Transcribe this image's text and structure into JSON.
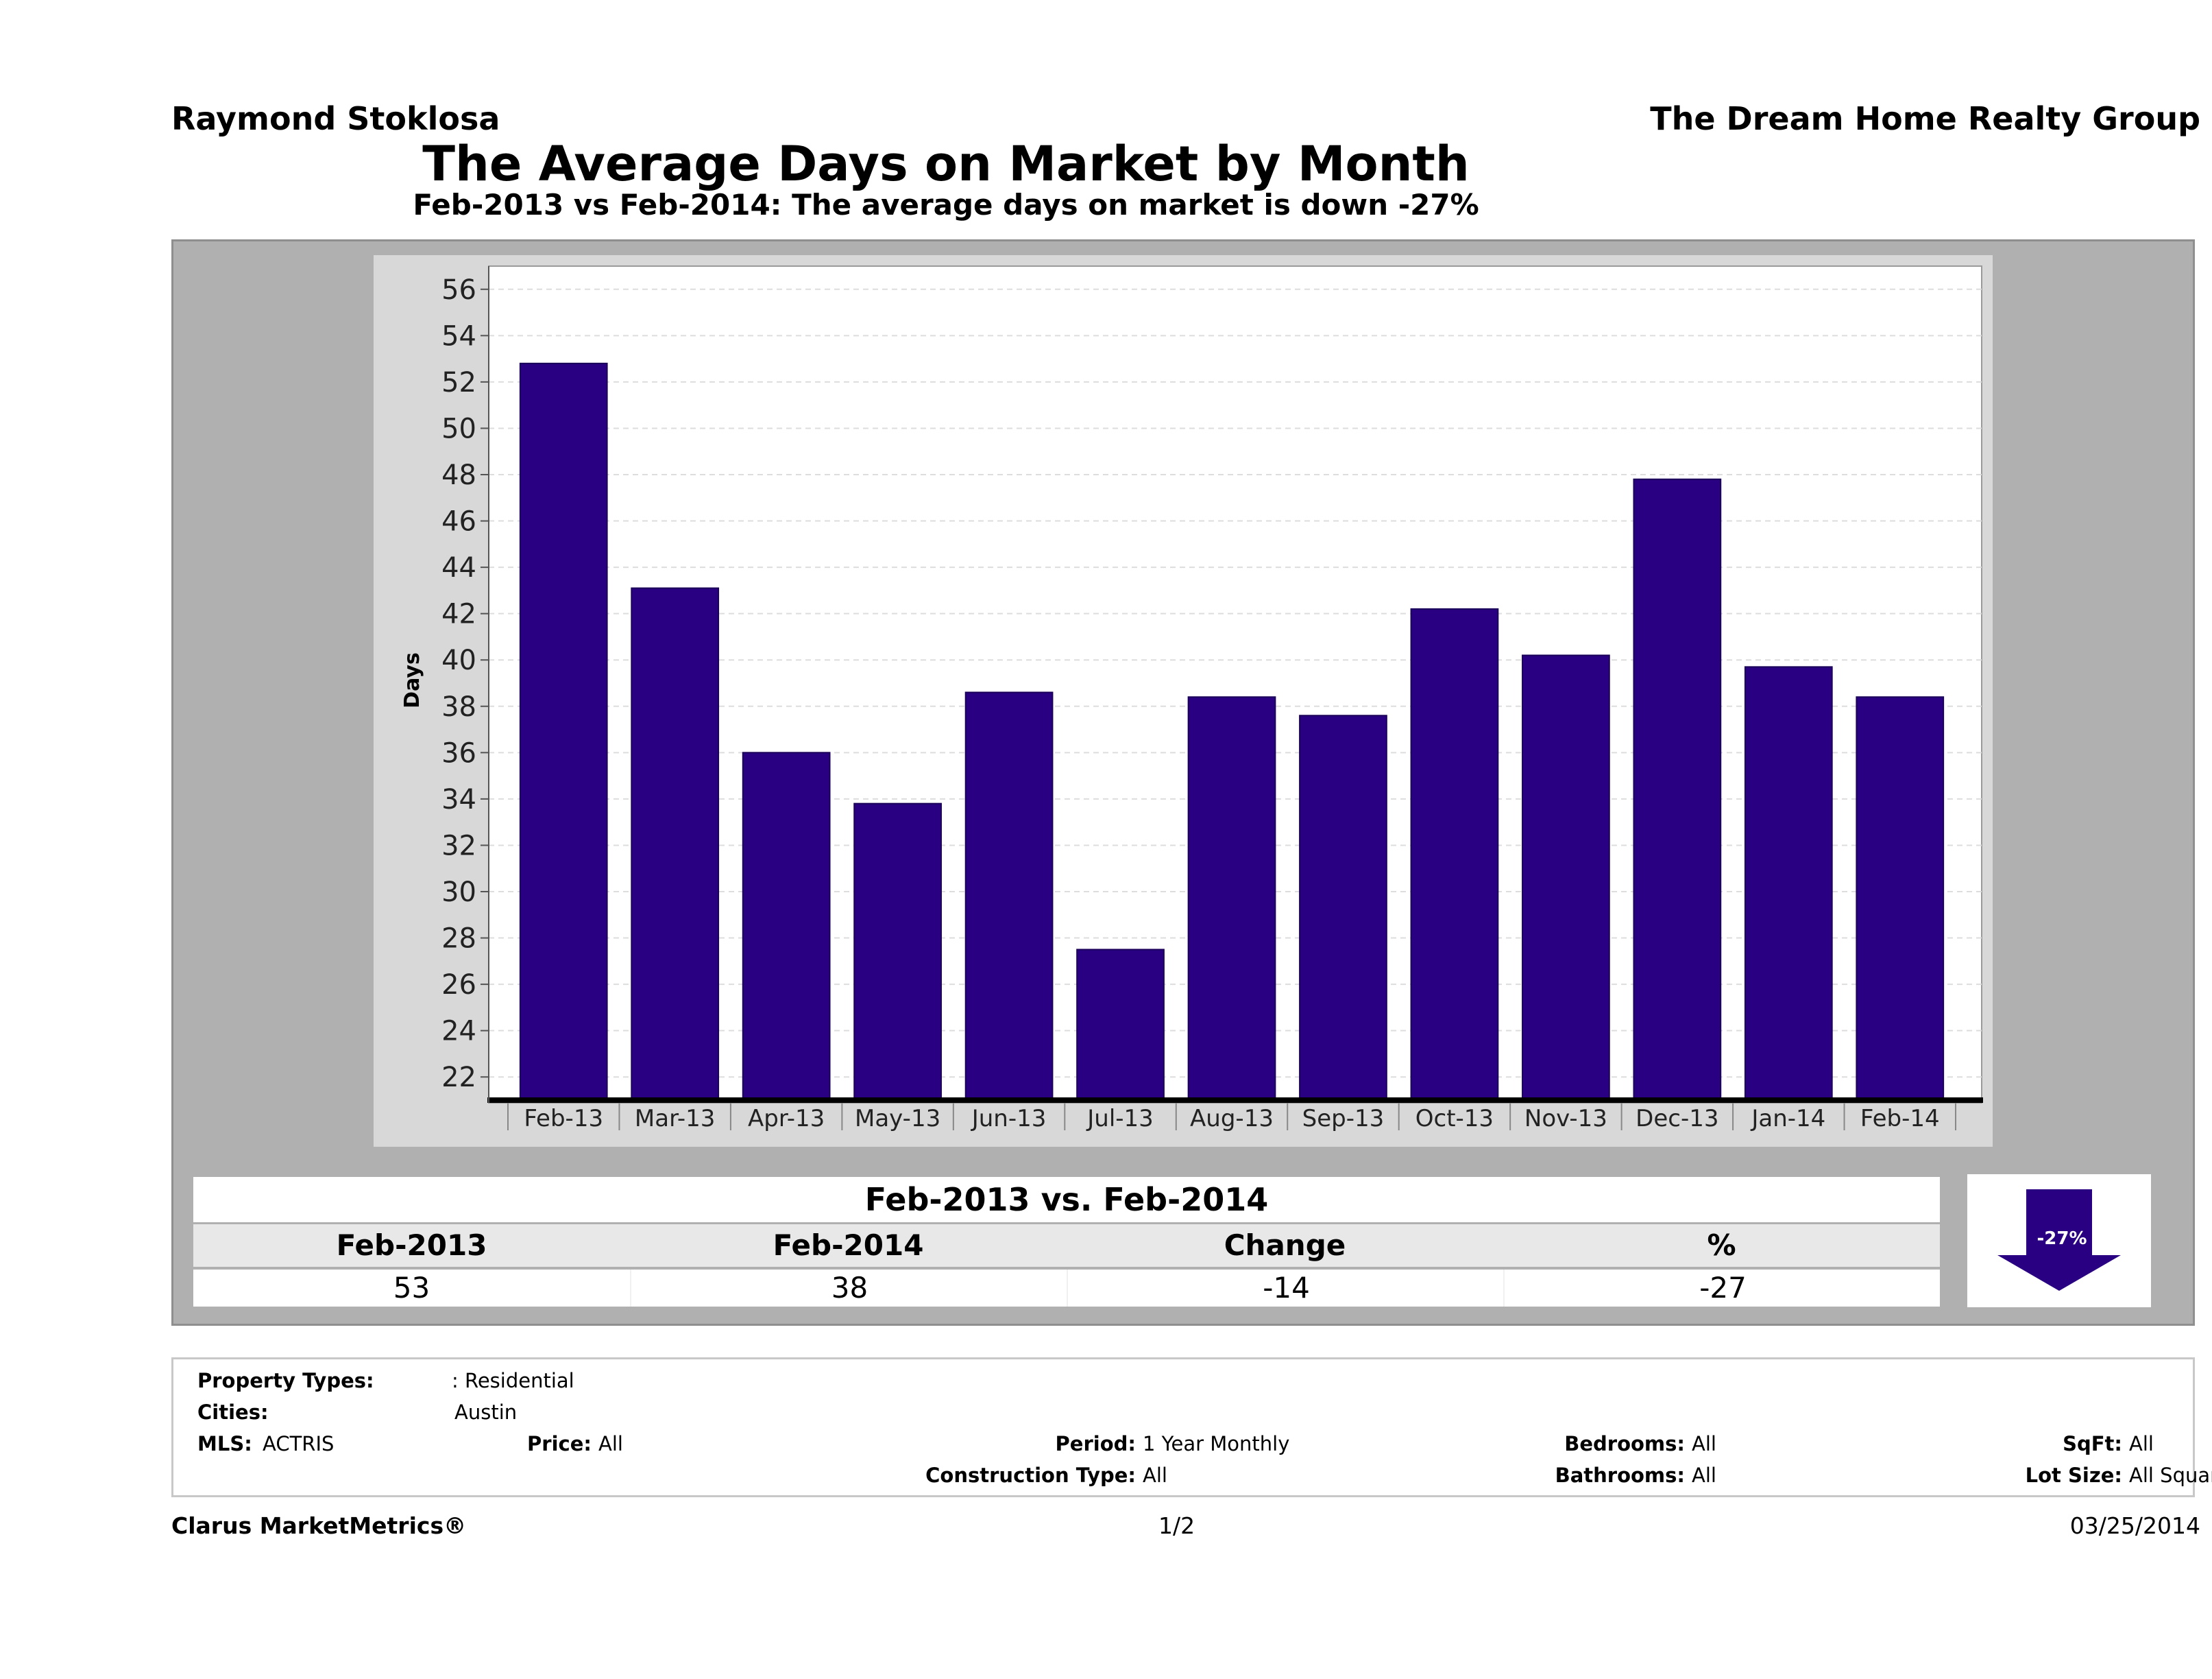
{
  "header": {
    "agent_name": "Raymond Stoklosa",
    "company": "The Dream Home Realty Group",
    "title": "The Average Days on Market by Month",
    "subtitle": "Feb-2013 vs Feb-2014: The average days on market is down -27%"
  },
  "colors": {
    "bar": "#2a0082",
    "panel": "#b0b0b0",
    "plot_frame": "#d8d8d8",
    "plot_bg": "#ffffff",
    "grid": "#dddddd"
  },
  "chart_data": {
    "type": "bar",
    "ylabel": "Days",
    "xlabel": "",
    "categories": [
      "Feb-13",
      "Mar-13",
      "Apr-13",
      "May-13",
      "Jun-13",
      "Jul-13",
      "Aug-13",
      "Sep-13",
      "Oct-13",
      "Nov-13",
      "Dec-13",
      "Jan-14",
      "Feb-14"
    ],
    "values": [
      52.8,
      43.1,
      36.0,
      33.8,
      38.6,
      27.5,
      38.4,
      37.6,
      42.2,
      40.2,
      47.8,
      39.7,
      38.4
    ],
    "ylim": [
      21,
      57
    ],
    "yticks": [
      22,
      24,
      26,
      28,
      30,
      32,
      34,
      36,
      38,
      40,
      42,
      44,
      46,
      48,
      50,
      52,
      54,
      56
    ],
    "grid": true,
    "grid_style": "dashed"
  },
  "comparison": {
    "title": "Feb-2013 vs. Feb-2014",
    "columns": [
      "Feb-2013",
      "Feb-2014",
      "Change",
      "%"
    ],
    "values": [
      "53",
      "38",
      "-14",
      "-27"
    ],
    "badge": "-27%",
    "direction": "down",
    "arrow_icon": "down-arrow-icon"
  },
  "criteria": {
    "property_types_label": "Property Types:",
    "property_types_value": ": Residential",
    "cities_label": "Cities:",
    "cities_value": "Austin",
    "mls_label": "MLS:",
    "mls_value": "ACTRIS",
    "price_label": "Price:",
    "price_value": "All",
    "period_label": "Period:",
    "period_value": "1 Year Monthly",
    "construction_label": "Construction Type:",
    "construction_value": "All",
    "bedrooms_label": "Bedrooms:",
    "bedrooms_value": "All",
    "bathrooms_label": "Bathrooms:",
    "bathrooms_value": "All",
    "sqft_label": "SqFt:",
    "sqft_value": "All",
    "lotsize_label": "Lot Size:",
    "lotsize_value": "All Square Footage"
  },
  "footer": {
    "brand": "Clarus MarketMetrics®",
    "page": "1/2",
    "date": "03/25/2014"
  }
}
